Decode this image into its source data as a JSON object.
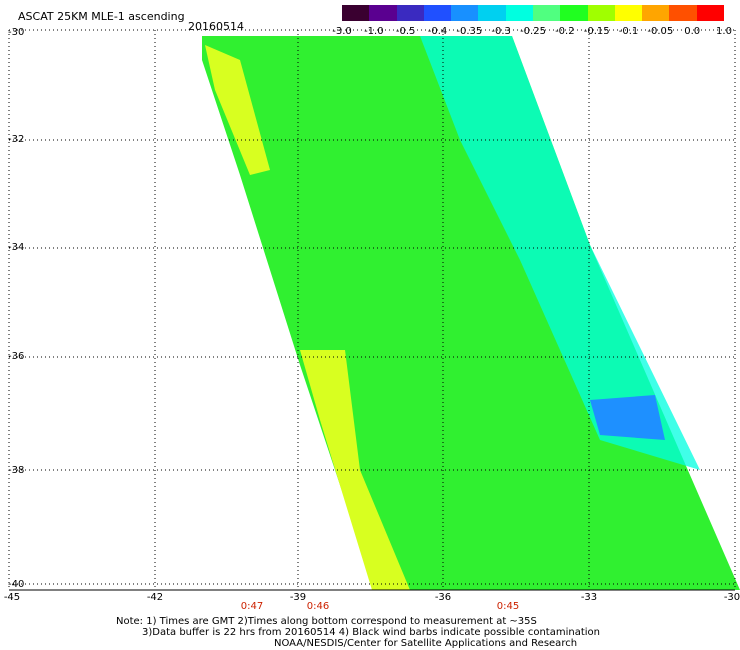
{
  "title": "ASCAT 25KM MLE-1 ascending",
  "date": "20160514",
  "colorbar": {
    "colors": [
      "#3a0030",
      "#5a0090",
      "#3a2ac0",
      "#2050ff",
      "#1890ff",
      "#00d0f0",
      "#00ffe0",
      "#50ff80",
      "#20ff20",
      "#a0ff00",
      "#ffff00",
      "#ffa500",
      "#ff5000",
      "#ff0000"
    ],
    "labels": [
      "-3.0",
      "-1.0",
      "-0.5",
      "-0.4",
      "-0.35",
      "-0.3",
      "-0.25",
      "-0.2",
      "-0.15",
      "-0.1",
      "-0.05",
      "0.0",
      "1.0"
    ]
  },
  "map": {
    "lat_labels": [
      "-30",
      "-32",
      "-34",
      "-36",
      "-38",
      "-40"
    ],
    "lon_labels": [
      "-45",
      "-42",
      "-39",
      "-36",
      "-33",
      "-30"
    ],
    "lat_range": [
      -30,
      -40
    ],
    "lon_range": [
      -45,
      -30
    ],
    "swath_fill": "#30f030",
    "swath_edge_fill": "#00ffe0"
  },
  "times": [
    "0:47",
    "0:46",
    "0:45"
  ],
  "notes": {
    "line1": "Note: 1) Times are GMT 2)Times along bottom correspond to measurement at ~35S",
    "line2": "3)Data buffer is 22 hrs from 20160514 4) Black wind barbs indicate possible contamination",
    "line3": "NOAA/NESDIS/Center for Satellite Applications and Research"
  }
}
